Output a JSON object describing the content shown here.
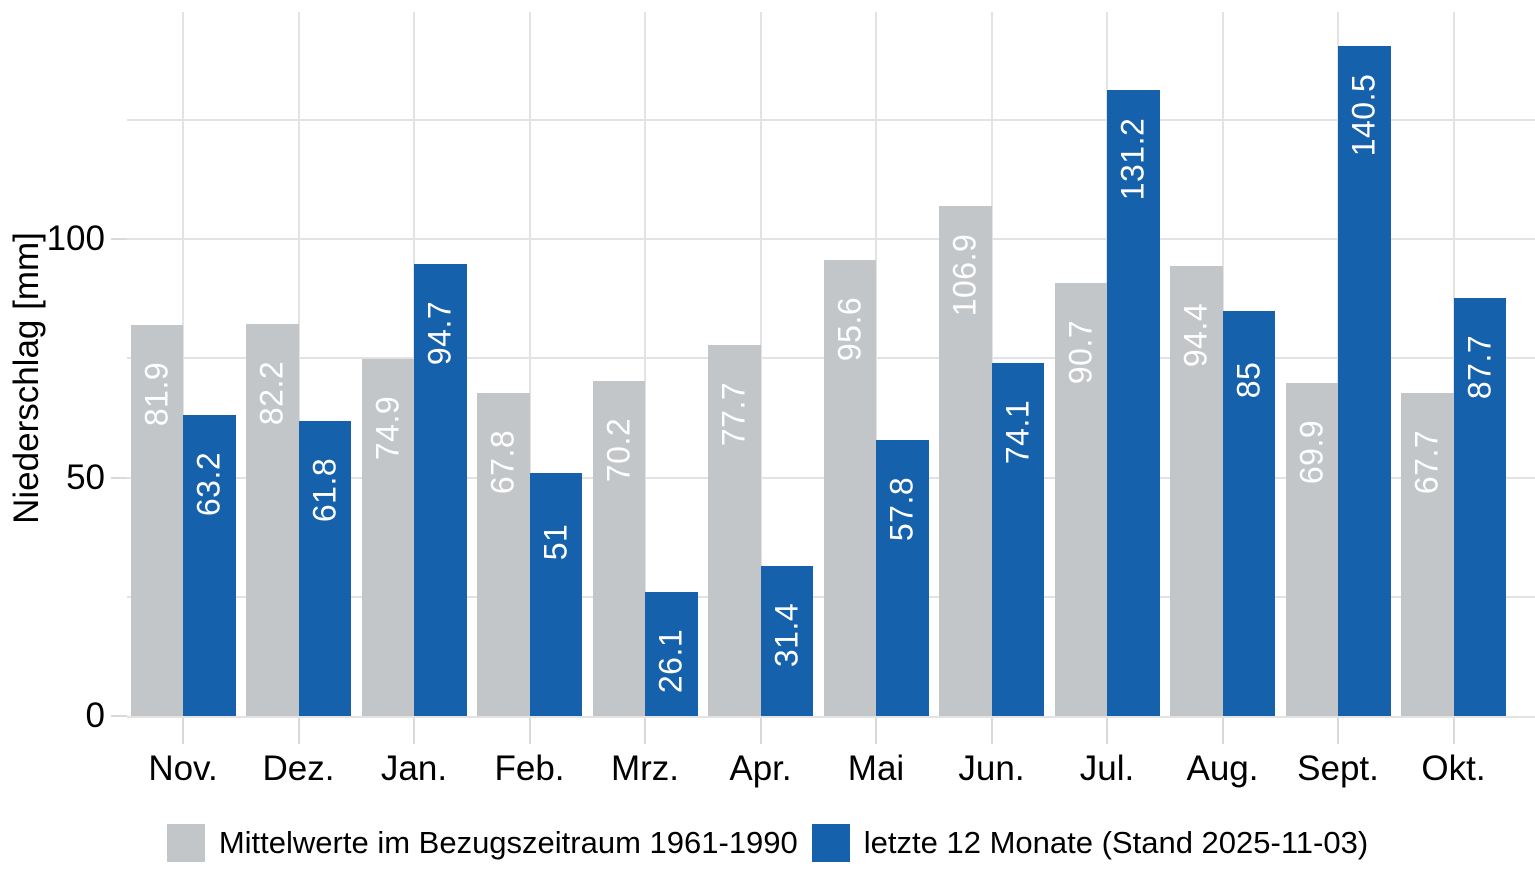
{
  "chart_data": {
    "type": "bar",
    "title": "",
    "xlabel": "",
    "ylabel": "Niederschlag [mm]",
    "categories": [
      "Nov.",
      "Dez.",
      "Jan.",
      "Feb.",
      "Mrz.",
      "Apr.",
      "Mai",
      "Jun.",
      "Jul.",
      "Aug.",
      "Sept.",
      "Okt."
    ],
    "series": [
      {
        "name": "Mittelwerte im Bezugszeitraum 1961-1990",
        "color": "#c3c6c8",
        "values": [
          81.9,
          82.2,
          74.9,
          67.8,
          70.2,
          77.7,
          95.6,
          106.9,
          90.7,
          94.4,
          69.9,
          67.7
        ],
        "labels": [
          "81.9",
          "82.2",
          "74.9",
          "67.8",
          "70.2",
          "77.7",
          "95.6",
          "106.9",
          "90.7",
          "94.4",
          "69.9",
          "67.7"
        ]
      },
      {
        "name": "letzte 12 Monate (Stand 2025-11-03)",
        "color": "#1661ac",
        "values": [
          63.2,
          61.8,
          94.7,
          51,
          26.1,
          31.4,
          57.8,
          74.1,
          131.2,
          85,
          140.5,
          87.7
        ],
        "labels": [
          "63.2",
          "61.8",
          "94.7",
          "51",
          "26.1",
          "31.4",
          "57.8",
          "74.1",
          "131.2",
          "85",
          "140.5",
          "87.7"
        ]
      }
    ],
    "yticks": [
      {
        "value": 0,
        "label": "0"
      },
      {
        "value": 50,
        "label": "50"
      },
      {
        "value": 100,
        "label": "100"
      }
    ],
    "gridlines": [
      25,
      50,
      75,
      100,
      125
    ],
    "ylim": [
      0,
      147.5
    ],
    "grid": true,
    "legend_position": "bottom",
    "bar_label_color": "#ffffff",
    "grid_color": "#e3e3e3",
    "tick_color": "#d9d9d9"
  }
}
